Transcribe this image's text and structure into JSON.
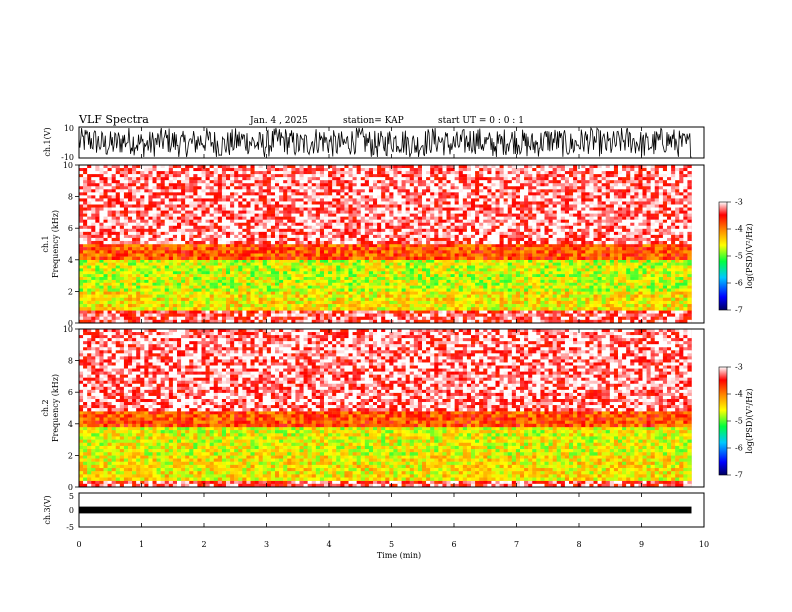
{
  "header": {
    "title": "VLF Spectra",
    "date": "Jan. 4 , 2025",
    "station": "station= KAP",
    "start_ut": "start UT =  0 : 0 : 1"
  },
  "chart_data": [
    {
      "type": "line",
      "panel": "ch1-waveform",
      "ylabel": "ch.1(V)",
      "ylim": [
        -10,
        10
      ],
      "y_ticks": [
        "10",
        "-10"
      ],
      "xlim": [
        0,
        10
      ],
      "x_ticks": [
        0,
        1,
        2,
        3,
        4,
        5,
        6,
        7,
        8,
        9,
        10
      ],
      "description_values": {
        "t_end_min": 9.8,
        "amplitude_max": 10,
        "amplitude_min": -10
      }
    },
    {
      "type": "heatmap",
      "panel": "ch1-spectrogram",
      "ylabel": "ch.1\nFrequency (kHz)",
      "ylabel_lines": [
        "ch.1",
        "Frequency (kHz)"
      ],
      "ylim": [
        0,
        10
      ],
      "y_ticks": [
        "0",
        "2",
        "4",
        "6",
        "8",
        "10"
      ],
      "xlim": [
        0,
        9.8
      ],
      "colorbar": {
        "label": "log(PSD)(V²/Hz)",
        "range": [
          -7,
          -3
        ],
        "ticks": [
          "-3",
          "-4",
          "-5",
          "-6",
          "-7"
        ]
      },
      "bands": [
        {
          "from_khz": 0.0,
          "to_khz": 0.8,
          "log_psd": -3.3
        },
        {
          "from_khz": 0.8,
          "to_khz": 2.0,
          "log_psd": -4.5
        },
        {
          "from_khz": 2.0,
          "to_khz": 4.0,
          "log_psd": -4.7
        },
        {
          "from_khz": 4.0,
          "to_khz": 5.0,
          "log_psd": -3.8
        },
        {
          "from_khz": 5.0,
          "to_khz": 10.0,
          "log_psd": -3.2
        }
      ]
    },
    {
      "type": "heatmap",
      "panel": "ch2-spectrogram",
      "ylabel": "ch.2\nFrequency (kHz)",
      "ylabel_lines": [
        "ch.2",
        "Frequency (kHz)"
      ],
      "ylim": [
        0,
        10
      ],
      "y_ticks": [
        "0",
        "2",
        "4",
        "6",
        "8",
        "10"
      ],
      "xlim": [
        0,
        9.8
      ],
      "colorbar": {
        "label": "log(PSD)(V²/Hz)",
        "range": [
          -7,
          -3
        ],
        "ticks": [
          "-3",
          "-4",
          "-5",
          "-6",
          "-7"
        ]
      },
      "bands": [
        {
          "from_khz": 0.0,
          "to_khz": 0.4,
          "log_psd": -3.3
        },
        {
          "from_khz": 0.4,
          "to_khz": 2.0,
          "log_psd": -4.5
        },
        {
          "from_khz": 2.0,
          "to_khz": 3.8,
          "log_psd": -4.6
        },
        {
          "from_khz": 3.8,
          "to_khz": 4.8,
          "log_psd": -3.8
        },
        {
          "from_khz": 4.8,
          "to_khz": 10.0,
          "log_psd": -3.2
        }
      ]
    },
    {
      "type": "line",
      "panel": "ch3-waveform",
      "ylabel": "ch.3(V)",
      "ylim": [
        -5,
        5
      ],
      "y_ticks": [
        "5",
        "0",
        "-5"
      ],
      "xlim": [
        0,
        10
      ],
      "xlabel": "Time (min)",
      "x_ticks": [
        "0",
        "1",
        "2",
        "3",
        "4",
        "5",
        "6",
        "7",
        "8",
        "9",
        "10"
      ],
      "description_values": {
        "baseline_v": 0,
        "band_v": [
          -1,
          1
        ]
      }
    }
  ]
}
